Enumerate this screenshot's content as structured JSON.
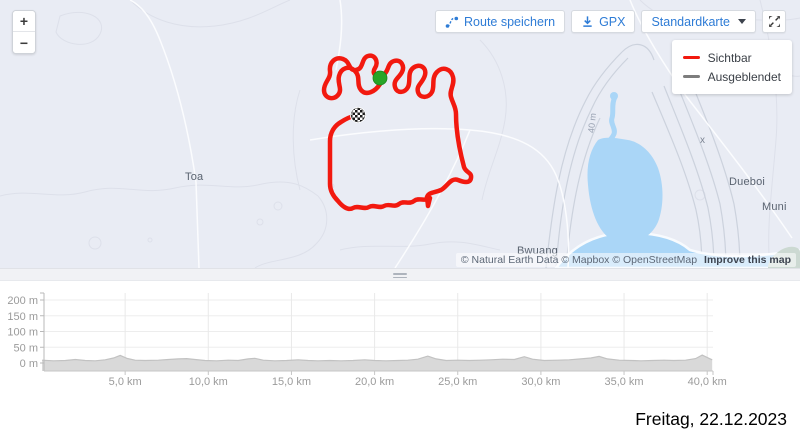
{
  "map": {
    "zoom_in_label": "+",
    "zoom_out_label": "−",
    "toolbar": {
      "save_route_label": "Route speichern",
      "gpx_label": "GPX",
      "map_style_label": "Standardkarte"
    },
    "legend": {
      "items": [
        {
          "label": "Sichtbar",
          "color": "#f2190f"
        },
        {
          "label": "Ausgeblendet",
          "color": "#7d7d7d"
        }
      ]
    },
    "place_labels": {
      "toa": "Toa",
      "bwuang": "Bwuang",
      "dueboi": "Dueboi",
      "muni": "Muni",
      "x_mark": "x",
      "contour_40m": "40 m"
    },
    "attribution": {
      "credits": "© Natural Earth Data © Mapbox © OpenStreetMap",
      "improve_link": "Improve this map"
    },
    "route_color": "#f2190f",
    "start_marker_color": "#28a528",
    "water_color": "#aad6f7"
  },
  "chart_data": {
    "type": "area",
    "title": "",
    "xlabel": "",
    "ylabel": "",
    "series_name": "elevation-profile",
    "x_unit": "km",
    "y_unit": "m",
    "xlim": [
      0,
      40.3
    ],
    "ylim": [
      0,
      200
    ],
    "grid": true,
    "legend_position": "none",
    "fill_color": "#d9d9d9",
    "line_color": "#c2c2c2",
    "x_ticks": [
      {
        "value": 5,
        "label": "5,0 km"
      },
      {
        "value": 10,
        "label": "10,0 km"
      },
      {
        "value": 15,
        "label": "15,0 km"
      },
      {
        "value": 20,
        "label": "20,0 km"
      },
      {
        "value": 25,
        "label": "25,0 km"
      },
      {
        "value": 30,
        "label": "30,0 km"
      },
      {
        "value": 35,
        "label": "35,0 km"
      },
      {
        "value": 40,
        "label": "40,0 km"
      }
    ],
    "y_ticks": [
      {
        "value": 0,
        "label": "0 m"
      },
      {
        "value": 50,
        "label": "50 m"
      },
      {
        "value": 100,
        "label": "100 m"
      },
      {
        "value": 150,
        "label": "150 m"
      },
      {
        "value": 200,
        "label": "200 m"
      }
    ],
    "points": [
      [
        0,
        9
      ],
      [
        0.7,
        7
      ],
      [
        1.4,
        8
      ],
      [
        2,
        11
      ],
      [
        2.6,
        8
      ],
      [
        3.2,
        7
      ],
      [
        3.8,
        10
      ],
      [
        4.3,
        16
      ],
      [
        4.7,
        24
      ],
      [
        5.1,
        15
      ],
      [
        5.6,
        9
      ],
      [
        6.2,
        8
      ],
      [
        7,
        9
      ],
      [
        7.6,
        11
      ],
      [
        8.2,
        13
      ],
      [
        8.7,
        14
      ],
      [
        9.2,
        11
      ],
      [
        9.8,
        8
      ],
      [
        10.5,
        7
      ],
      [
        11.2,
        9
      ],
      [
        11.8,
        8
      ],
      [
        12.4,
        13
      ],
      [
        12.8,
        15
      ],
      [
        13.3,
        9
      ],
      [
        14,
        7
      ],
      [
        14.7,
        8
      ],
      [
        15.4,
        10
      ],
      [
        16,
        8
      ],
      [
        16.6,
        7
      ],
      [
        17.3,
        8
      ],
      [
        18,
        7
      ],
      [
        18.7,
        8
      ],
      [
        19.4,
        10
      ],
      [
        20,
        8
      ],
      [
        20.7,
        7
      ],
      [
        21.4,
        8
      ],
      [
        22,
        9
      ],
      [
        22.6,
        12
      ],
      [
        23.2,
        22
      ],
      [
        23.7,
        13
      ],
      [
        24.3,
        8
      ],
      [
        25,
        9
      ],
      [
        25.7,
        8
      ],
      [
        26.4,
        9
      ],
      [
        27,
        10
      ],
      [
        27.7,
        12
      ],
      [
        28.4,
        11
      ],
      [
        29,
        20
      ],
      [
        29.5,
        12
      ],
      [
        30.2,
        8
      ],
      [
        31,
        9
      ],
      [
        31.7,
        10
      ],
      [
        32.4,
        13
      ],
      [
        33,
        16
      ],
      [
        33.5,
        21
      ],
      [
        34,
        13
      ],
      [
        34.7,
        9
      ],
      [
        35.4,
        8
      ],
      [
        36,
        7
      ],
      [
        36.7,
        8
      ],
      [
        37.4,
        9
      ],
      [
        38,
        8
      ],
      [
        38.7,
        9
      ],
      [
        39.3,
        14
      ],
      [
        39.7,
        25
      ],
      [
        40.1,
        15
      ],
      [
        40.3,
        10
      ]
    ]
  },
  "footer": {
    "date_label": "Freitag, 22.12.2023"
  }
}
